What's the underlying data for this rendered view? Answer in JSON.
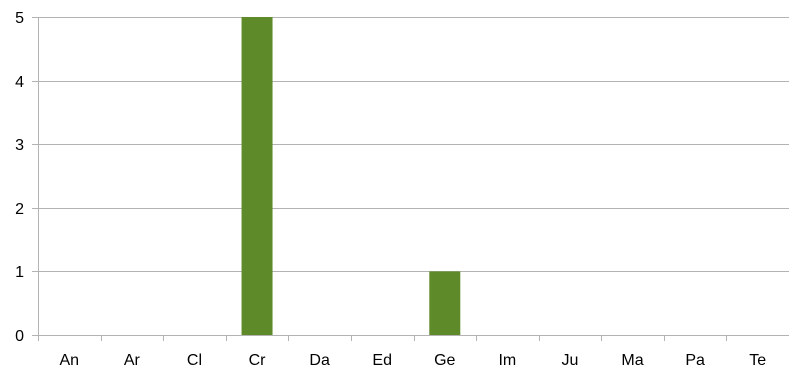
{
  "chart_data": {
    "type": "bar",
    "categories": [
      "An",
      "Ar",
      "Cl",
      "Cr",
      "Da",
      "Ed",
      "Ge",
      "Im",
      "Ju",
      "Ma",
      "Pa",
      "Te"
    ],
    "values": [
      0,
      0,
      0,
      5,
      0,
      0,
      1,
      0,
      0,
      0,
      0,
      0
    ],
    "title": "",
    "xlabel": "",
    "ylabel": "",
    "ylim": [
      0,
      5
    ],
    "yticks": [
      0,
      1,
      2,
      3,
      4,
      5
    ],
    "grid": true,
    "legend": "none",
    "bar_color": "#5f8a2a",
    "grid_color": "#b3b3b3"
  }
}
